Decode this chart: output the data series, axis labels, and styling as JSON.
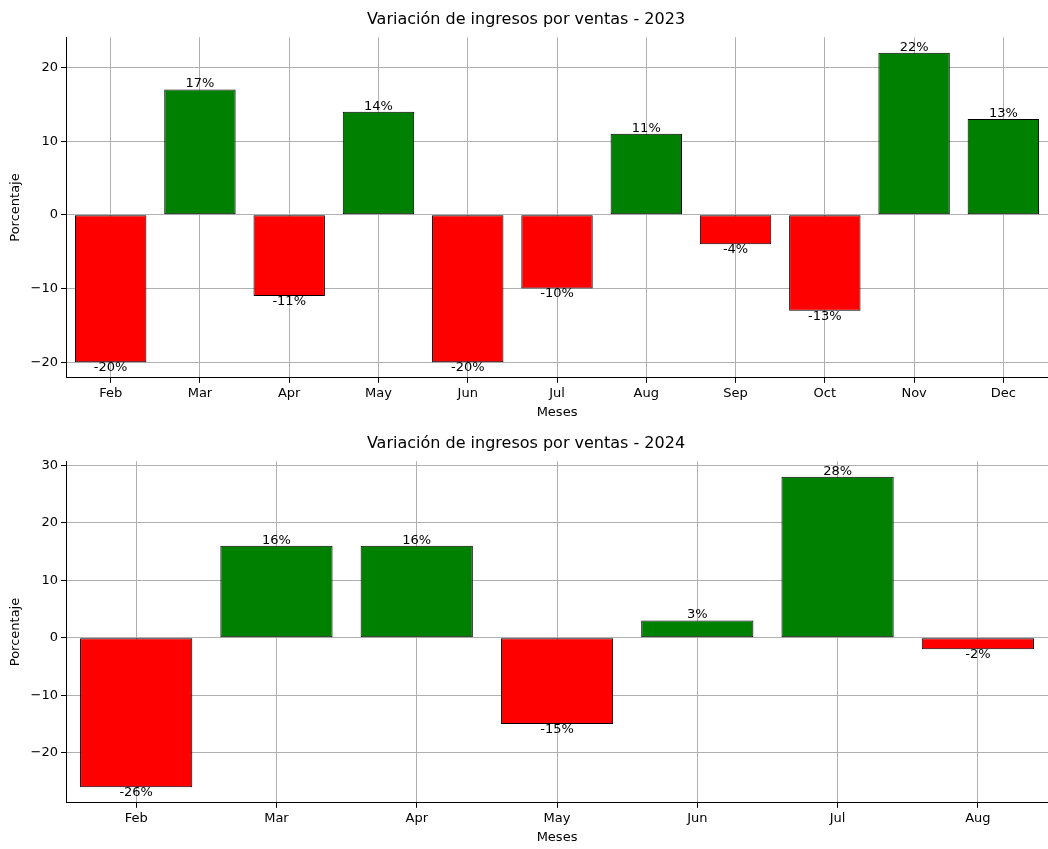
{
  "chart_data": [
    {
      "type": "bar",
      "title": "Variación de ingresos por ventas - 2023",
      "xlabel": "Meses",
      "ylabel": "Porcentaje",
      "categories": [
        "Feb",
        "Mar",
        "Apr",
        "May",
        "Jun",
        "Jul",
        "Aug",
        "Sep",
        "Oct",
        "Nov",
        "Dec"
      ],
      "values": [
        -20,
        17,
        -11,
        14,
        -20,
        -10,
        11,
        -4,
        -13,
        22,
        13
      ],
      "colors": [
        "#ff0000",
        "#008000",
        "#ff0000",
        "#008000",
        "#ff0000",
        "#ff0000",
        "#008000",
        "#ff0000",
        "#ff0000",
        "#008000",
        "#008000"
      ],
      "value_labels": [
        "-20%",
        "17%",
        "-11%",
        "14%",
        "-20%",
        "-10%",
        "11%",
        "-4%",
        "-13%",
        "22%",
        "13%"
      ],
      "ylim": [
        -22.1,
        24.1
      ],
      "yticks": [
        -20,
        -10,
        0,
        10,
        20
      ],
      "grid": true,
      "legend": false
    },
    {
      "type": "bar",
      "title": "Variación de ingresos por ventas - 2024",
      "xlabel": "Meses",
      "ylabel": "Porcentaje",
      "categories": [
        "Feb",
        "Mar",
        "Apr",
        "May",
        "Jun",
        "Jul",
        "Aug"
      ],
      "values": [
        -26,
        16,
        16,
        -15,
        3,
        28,
        -2
      ],
      "colors": [
        "#ff0000",
        "#008000",
        "#008000",
        "#ff0000",
        "#008000",
        "#008000",
        "#ff0000"
      ],
      "value_labels": [
        "-26%",
        "16%",
        "16%",
        "-15%",
        "3%",
        "28%",
        "-2%"
      ],
      "ylim": [
        -28.7,
        30.7
      ],
      "yticks": [
        -20,
        -10,
        0,
        10,
        20,
        30
      ],
      "grid": true,
      "legend": false
    }
  ]
}
